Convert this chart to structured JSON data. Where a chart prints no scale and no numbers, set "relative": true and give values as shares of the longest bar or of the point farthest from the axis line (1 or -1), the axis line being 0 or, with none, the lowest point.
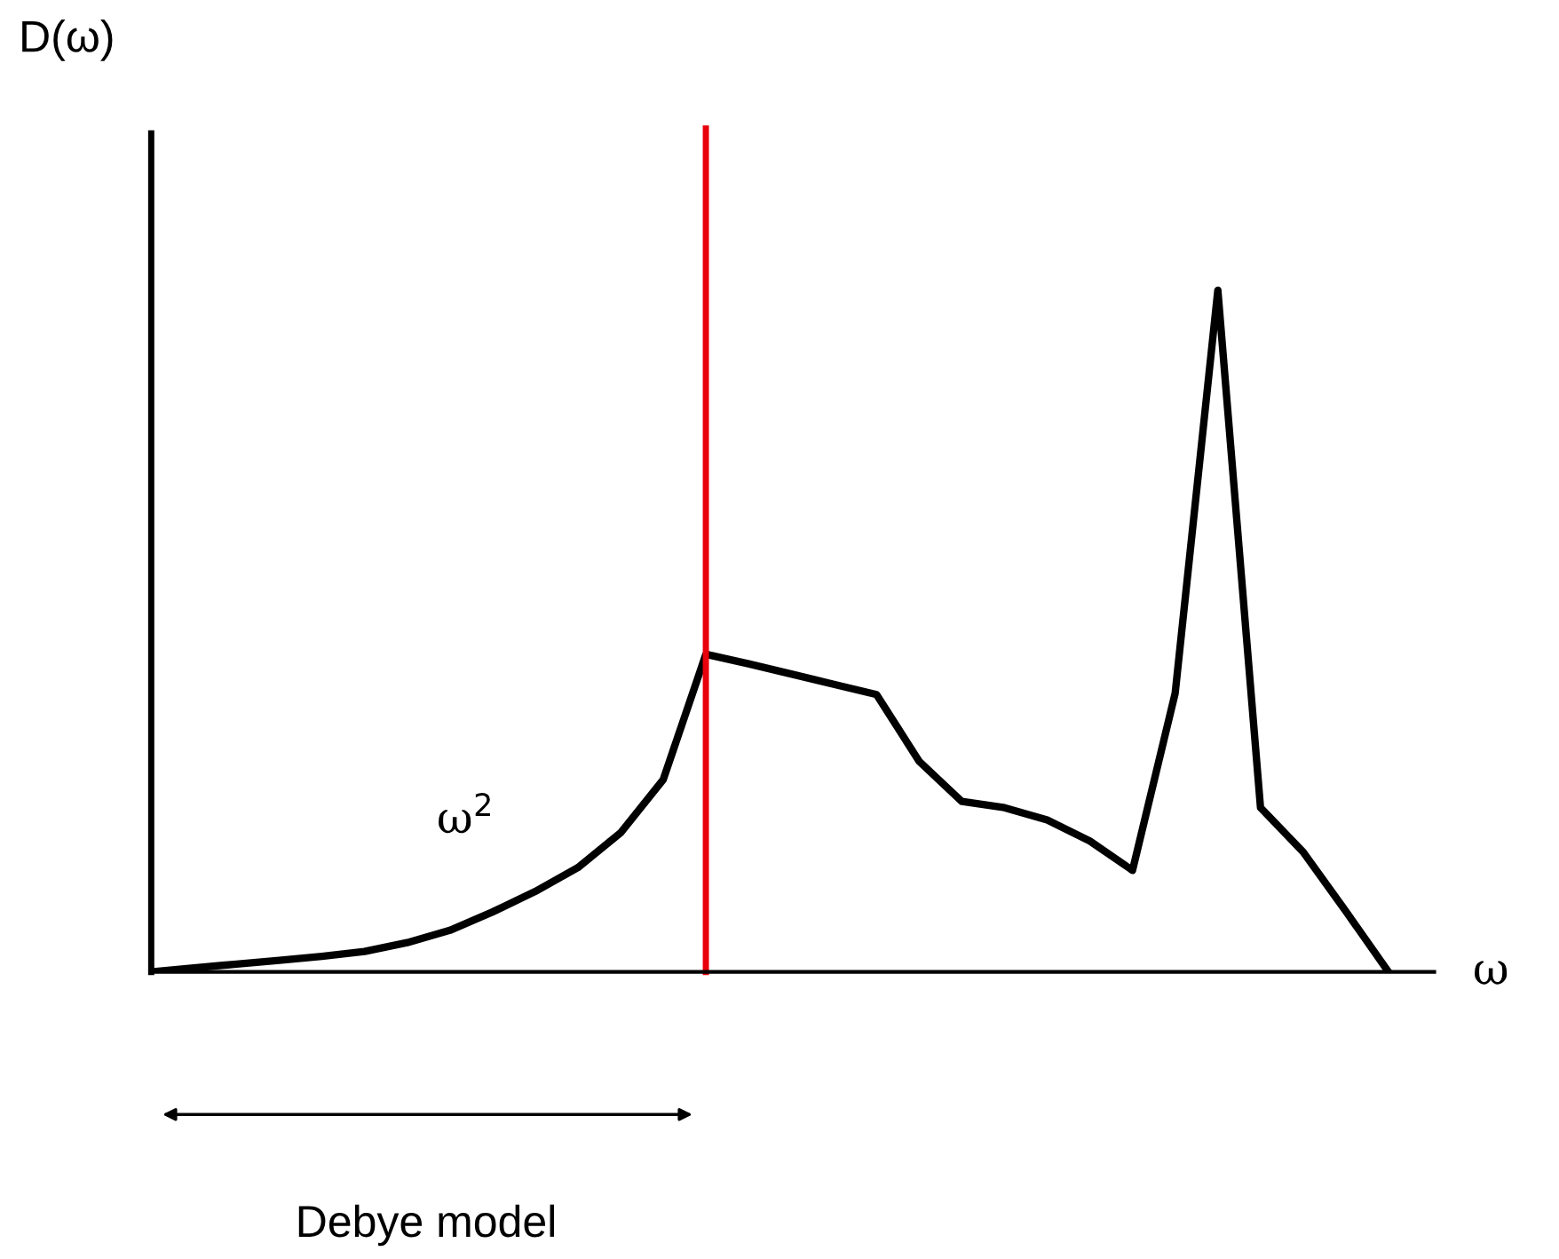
{
  "chart_data": {
    "type": "line",
    "relative": true,
    "xlabel": "ω",
    "legend": false,
    "categories": [
      null,
      null,
      null,
      null,
      null,
      null,
      null,
      null,
      null,
      null,
      null,
      null,
      null,
      null,
      null,
      null,
      null,
      null,
      null,
      null,
      null,
      null,
      null,
      null,
      null,
      null,
      null,
      null,
      null,
      null
    ],
    "series": [
      {
        "color": "#000000",
        "values": [
          0,
          0.006,
          0.0115,
          0.017,
          0.023,
          0.03,
          0.043,
          0.061,
          0.088,
          0.118,
          0.153,
          0.204,
          0.282,
          0.466,
          0.452,
          0.437,
          0.422,
          0.407,
          0.309,
          0.25,
          0.241,
          0.223,
          0.192,
          0.149,
          0.409,
          1,
          0.241,
          0.176,
          0.089,
          0
        ]
      }
    ],
    "annotations": [
      "ω$^{2}$",
      "Debye model",
      "D(ω)"
    ]
  }
}
